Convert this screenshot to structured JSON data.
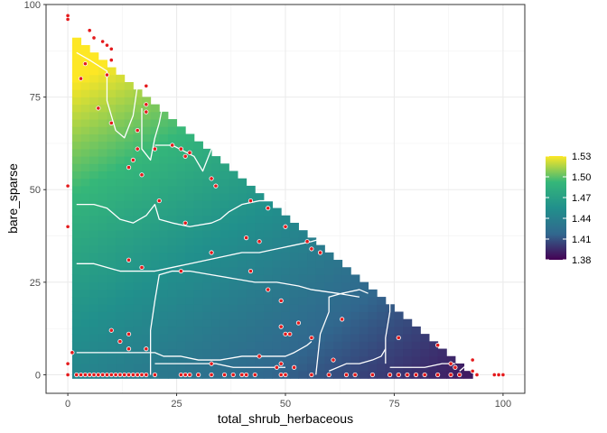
{
  "chart_data": {
    "type": "heatmap",
    "title": "",
    "xlabel": "total_shrub_herbaceous",
    "ylabel": "bare_sparse",
    "xlim": [
      -5,
      105
    ],
    "ylim": [
      -5,
      100
    ],
    "x_ticks": [
      0,
      25,
      50,
      75,
      100
    ],
    "y_ticks": [
      0,
      25,
      50,
      75,
      100
    ],
    "grid": true,
    "constraint": "x + y <= 100",
    "cell_size": 2,
    "fill_range": [
      1.38,
      1.53
    ],
    "colorscale": [
      "#440154",
      "#31688e",
      "#21908c",
      "#35b779",
      "#fde725"
    ],
    "legend": {
      "position": "right",
      "labels": [
        "1.53",
        "1.50",
        "1.47",
        "1.44",
        "1.41",
        "1.38"
      ],
      "values": [
        1.53,
        1.5,
        1.47,
        1.44,
        1.41,
        1.38
      ]
    },
    "contours": [
      [
        [
          2,
          87
        ],
        [
          5,
          85
        ],
        [
          9,
          82
        ],
        [
          9,
          74
        ],
        [
          11,
          66
        ],
        [
          13,
          64
        ],
        [
          15,
          70
        ],
        [
          16,
          78
        ],
        [
          16,
          86
        ]
      ],
      [
        [
          17,
          72
        ],
        [
          17,
          61
        ],
        [
          19,
          58
        ],
        [
          20,
          64
        ],
        [
          21,
          68
        ],
        [
          22,
          74
        ]
      ],
      [
        [
          20,
          62
        ],
        [
          24,
          62
        ],
        [
          29,
          59
        ],
        [
          31,
          55
        ],
        [
          33,
          61
        ],
        [
          36,
          62
        ],
        [
          38,
          62
        ]
      ],
      [
        [
          2,
          46
        ],
        [
          6,
          46
        ],
        [
          9,
          45
        ],
        [
          12,
          42
        ],
        [
          15,
          41
        ],
        [
          18,
          43
        ],
        [
          20,
          46
        ],
        [
          21,
          42
        ],
        [
          24,
          41
        ],
        [
          28,
          40
        ],
        [
          33,
          41
        ],
        [
          35,
          42
        ],
        [
          37,
          44
        ],
        [
          40,
          46
        ],
        [
          44,
          47
        ],
        [
          48,
          47
        ],
        [
          52,
          47
        ],
        [
          55,
          46
        ]
      ],
      [
        [
          2,
          30
        ],
        [
          6,
          30
        ],
        [
          9,
          29
        ],
        [
          12,
          28
        ],
        [
          16,
          28
        ],
        [
          20,
          28
        ],
        [
          24,
          29
        ],
        [
          28,
          30
        ],
        [
          32,
          31
        ],
        [
          36,
          32
        ],
        [
          40,
          33
        ],
        [
          44,
          33
        ],
        [
          48,
          34
        ],
        [
          52,
          35
        ],
        [
          56,
          36
        ],
        [
          59,
          37
        ]
      ],
      [
        [
          19,
          0
        ],
        [
          19,
          12
        ],
        [
          20,
          20
        ],
        [
          21,
          27
        ],
        [
          24,
          28
        ],
        [
          28,
          28
        ],
        [
          33,
          27
        ],
        [
          38,
          26
        ],
        [
          43,
          25
        ],
        [
          48,
          25
        ],
        [
          53,
          24
        ],
        [
          56,
          23
        ],
        [
          62,
          22
        ],
        [
          67,
          21
        ]
      ],
      [
        [
          2,
          6
        ],
        [
          6,
          6
        ],
        [
          10,
          6
        ],
        [
          14,
          6
        ],
        [
          18,
          6
        ],
        [
          20,
          6
        ],
        [
          22,
          5
        ],
        [
          26,
          5
        ],
        [
          30,
          4
        ],
        [
          35,
          4
        ],
        [
          40,
          5
        ],
        [
          45,
          5
        ],
        [
          50,
          5
        ],
        [
          52,
          6
        ],
        [
          55,
          8
        ],
        [
          56,
          9
        ]
      ],
      [
        [
          57,
          0
        ],
        [
          58,
          11
        ],
        [
          60,
          17
        ],
        [
          60,
          21
        ],
        [
          63,
          22
        ],
        [
          67,
          23
        ],
        [
          69,
          22
        ]
      ],
      [
        [
          20,
          3
        ],
        [
          25,
          3
        ],
        [
          30,
          3
        ],
        [
          34,
          3
        ],
        [
          38,
          2
        ],
        [
          45,
          2
        ],
        [
          50,
          2
        ]
      ],
      [
        [
          60,
          1
        ],
        [
          64,
          3
        ],
        [
          67,
          3
        ],
        [
          70,
          4
        ],
        [
          72,
          5
        ],
        [
          73,
          7
        ]
      ],
      [
        [
          73,
          3
        ],
        [
          73,
          10
        ],
        [
          74,
          17
        ],
        [
          74,
          21
        ],
        [
          74,
          24
        ]
      ],
      [
        [
          74,
          2
        ],
        [
          78,
          2
        ],
        [
          82,
          2
        ],
        [
          86,
          3
        ],
        [
          89,
          3
        ]
      ],
      [
        [
          90,
          1
        ],
        [
          92,
          3
        ],
        [
          94,
          4
        ],
        [
          96,
          3
        ]
      ]
    ],
    "points": [
      [
        0,
        97
      ],
      [
        0,
        96
      ],
      [
        5,
        93
      ],
      [
        6,
        91
      ],
      [
        8,
        90
      ],
      [
        9,
        89
      ],
      [
        10,
        88
      ],
      [
        10,
        85
      ],
      [
        4,
        84
      ],
      [
        3,
        80
      ],
      [
        9,
        81
      ],
      [
        18,
        78
      ],
      [
        7,
        72
      ],
      [
        18,
        73
      ],
      [
        18,
        71
      ],
      [
        10,
        68
      ],
      [
        16,
        66
      ],
      [
        16,
        61
      ],
      [
        20,
        61
      ],
      [
        24,
        62
      ],
      [
        26,
        61
      ],
      [
        28,
        60
      ],
      [
        27,
        59
      ],
      [
        15,
        58
      ],
      [
        14,
        56
      ],
      [
        17,
        54
      ],
      [
        33,
        53
      ],
      [
        34,
        51
      ],
      [
        0,
        51
      ],
      [
        21,
        47
      ],
      [
        42,
        47
      ],
      [
        46,
        45
      ],
      [
        0,
        40
      ],
      [
        27,
        41
      ],
      [
        50,
        40
      ],
      [
        41,
        37
      ],
      [
        44,
        36
      ],
      [
        55,
        36
      ],
      [
        56,
        34
      ],
      [
        58,
        33
      ],
      [
        33,
        33
      ],
      [
        14,
        31
      ],
      [
        17,
        29
      ],
      [
        26,
        28
      ],
      [
        42,
        28
      ],
      [
        46,
        23
      ],
      [
        49,
        20
      ],
      [
        63,
        15
      ],
      [
        53,
        14
      ],
      [
        49,
        13
      ],
      [
        10,
        12
      ],
      [
        14,
        11
      ],
      [
        51,
        11
      ],
      [
        50,
        11
      ],
      [
        12,
        9
      ],
      [
        56,
        10
      ],
      [
        76,
        10
      ],
      [
        85,
        8
      ],
      [
        14,
        7
      ],
      [
        18,
        7
      ],
      [
        1,
        6
      ],
      [
        44,
        5
      ],
      [
        61,
        4
      ],
      [
        88,
        3
      ],
      [
        33,
        3
      ],
      [
        49,
        3
      ],
      [
        48,
        2
      ],
      [
        52,
        2
      ],
      [
        89,
        2
      ],
      [
        93,
        4
      ],
      [
        93,
        1
      ],
      [
        0,
        0
      ],
      [
        2,
        0
      ],
      [
        3,
        0
      ],
      [
        4,
        0
      ],
      [
        5,
        0
      ],
      [
        6,
        0
      ],
      [
        7,
        0
      ],
      [
        8,
        0
      ],
      [
        9,
        0
      ],
      [
        10,
        0
      ],
      [
        11,
        0
      ],
      [
        12,
        0
      ],
      [
        13,
        0
      ],
      [
        14,
        0
      ],
      [
        15,
        0
      ],
      [
        16,
        0
      ],
      [
        17,
        0
      ],
      [
        18,
        0
      ],
      [
        20,
        0
      ],
      [
        26,
        0
      ],
      [
        27,
        0
      ],
      [
        28,
        0
      ],
      [
        30,
        0
      ],
      [
        33,
        0
      ],
      [
        36,
        0
      ],
      [
        38,
        0
      ],
      [
        40,
        0
      ],
      [
        41,
        0
      ],
      [
        43,
        0
      ],
      [
        49,
        0
      ],
      [
        50,
        0
      ],
      [
        56,
        0
      ],
      [
        60,
        0
      ],
      [
        64,
        0
      ],
      [
        66,
        0
      ],
      [
        70,
        0
      ],
      [
        74,
        0
      ],
      [
        76,
        0
      ],
      [
        78,
        0
      ],
      [
        80,
        0
      ],
      [
        82,
        0
      ],
      [
        85,
        0
      ],
      [
        88,
        0
      ],
      [
        90,
        0
      ],
      [
        94,
        0
      ],
      [
        98,
        0
      ],
      [
        99,
        0
      ],
      [
        100,
        0
      ],
      [
        0,
        3
      ]
    ]
  }
}
